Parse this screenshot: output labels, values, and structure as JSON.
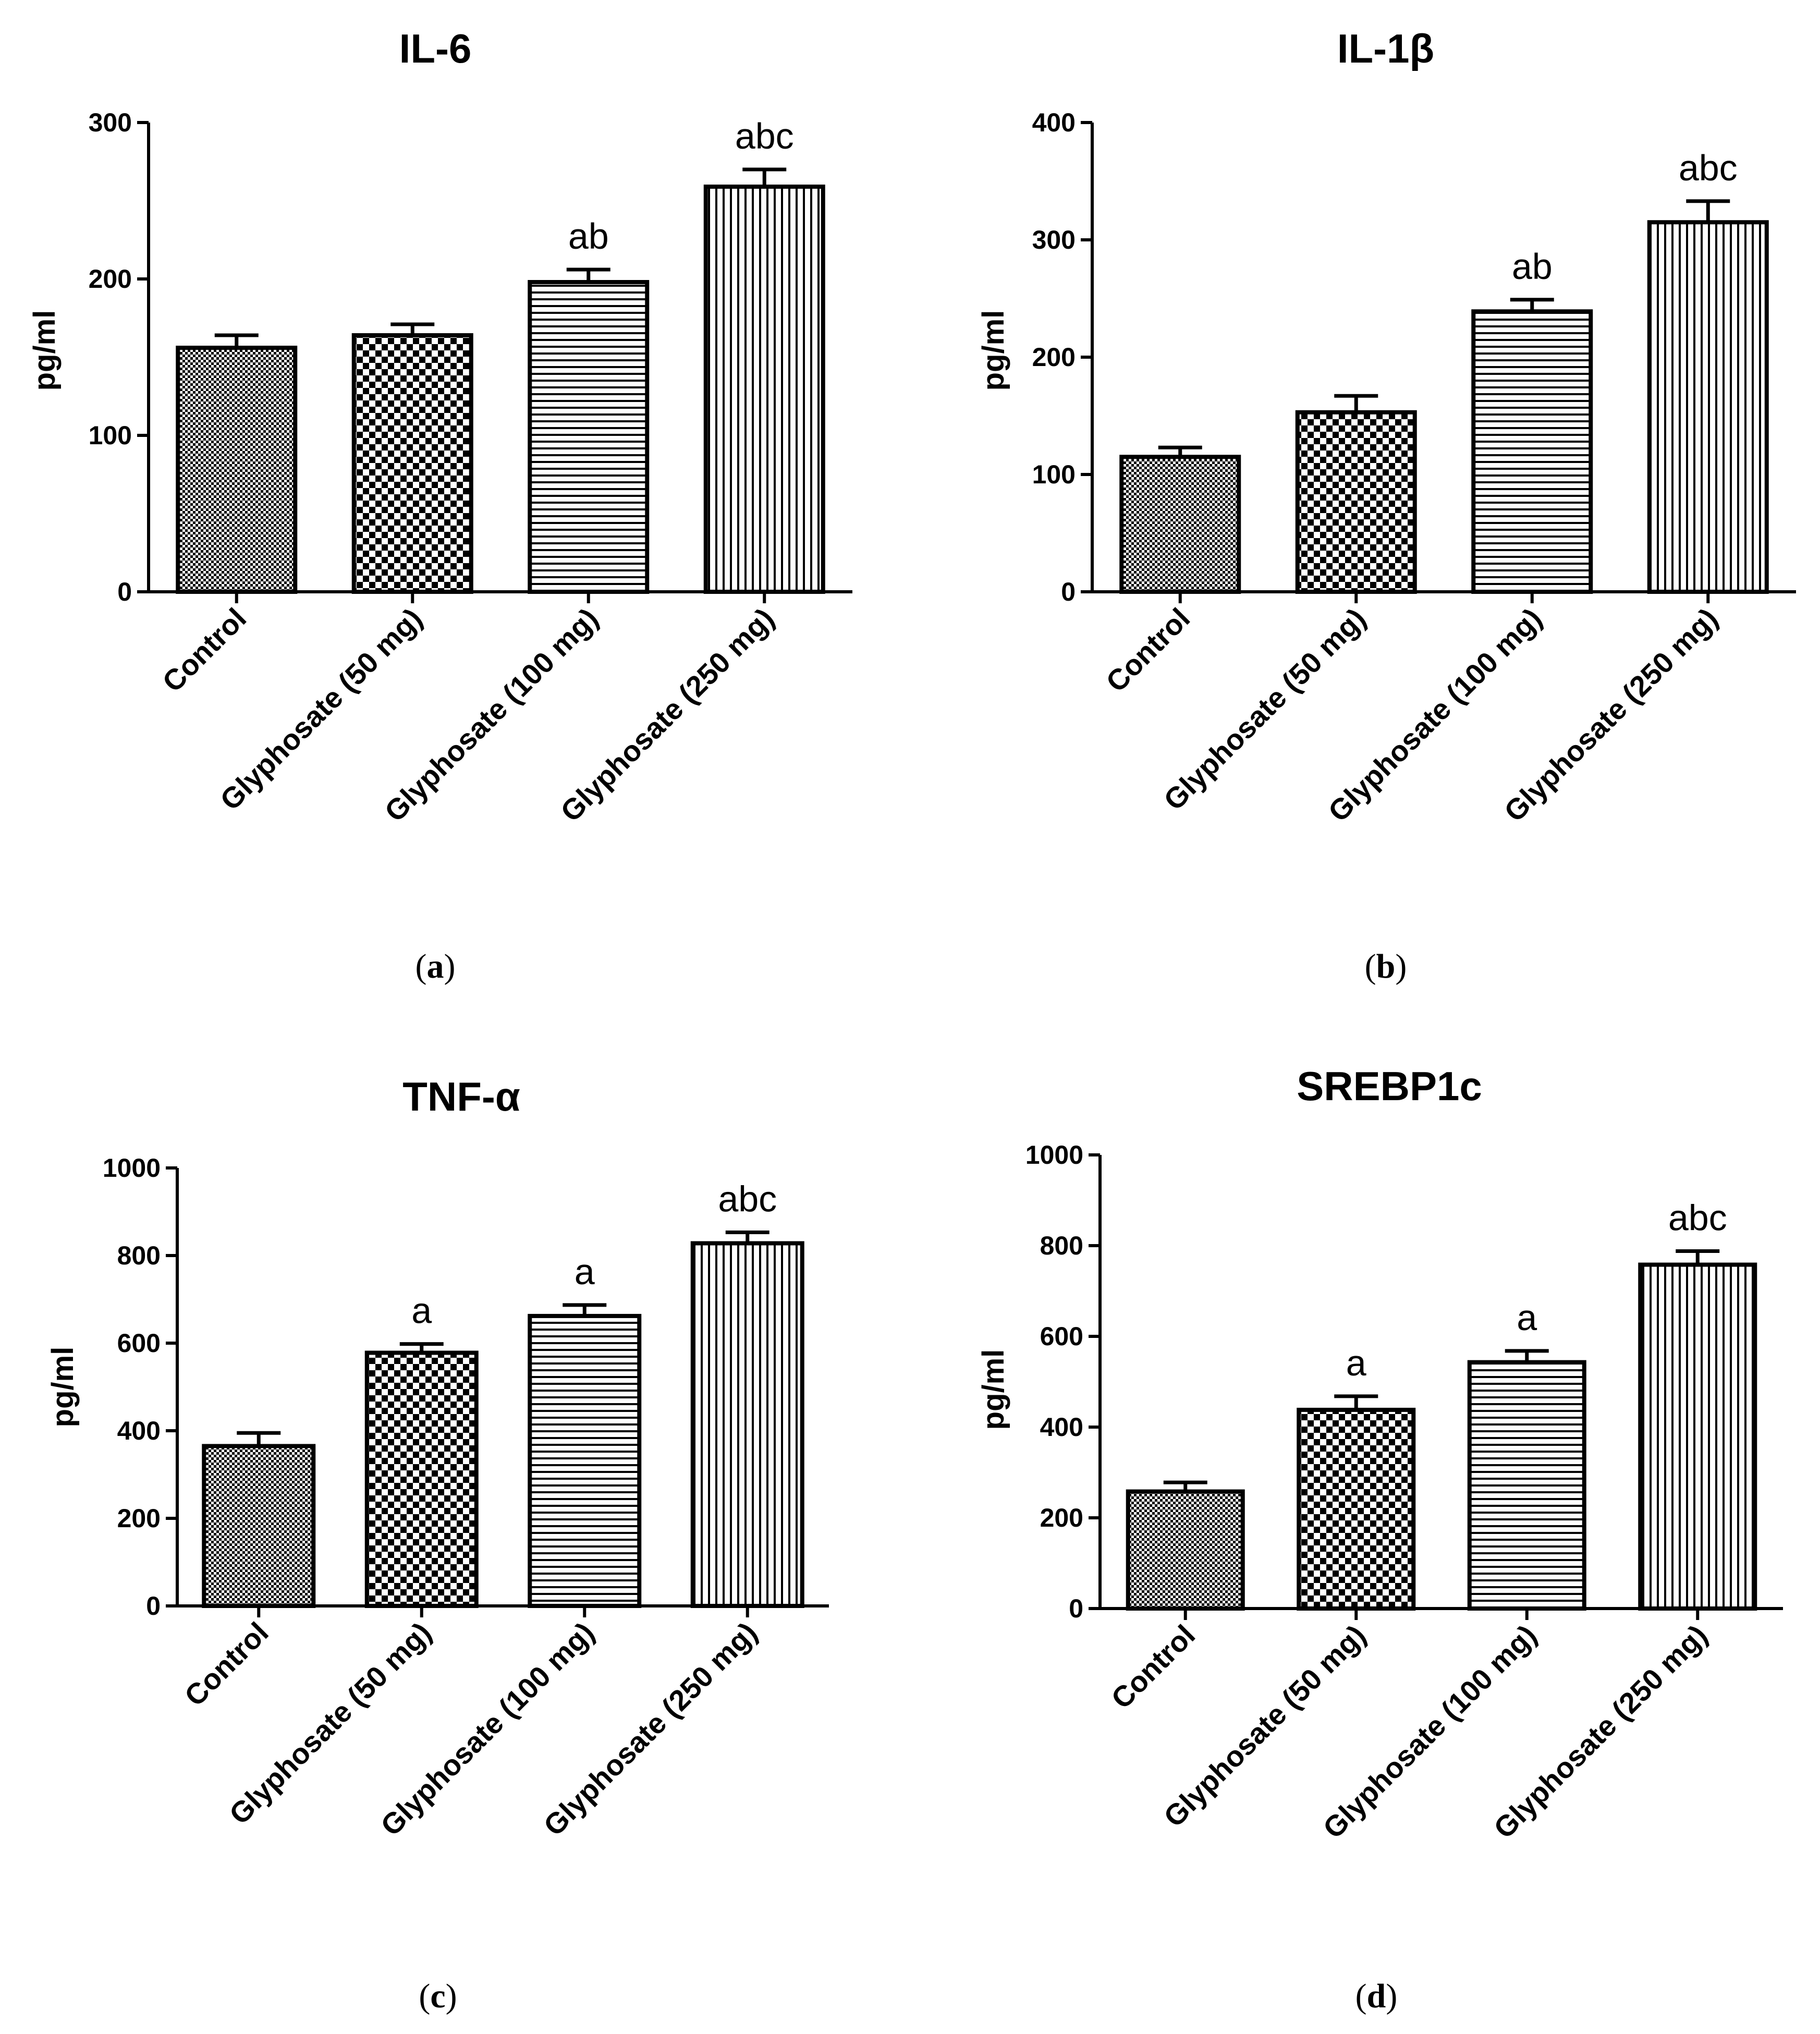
{
  "chart_data": [
    {
      "panel": "a",
      "type": "bar",
      "title": "IL-6",
      "ylabel": "pg/ml",
      "xlabel": "",
      "categories": [
        "Control",
        "Glyphosate (50 mg)",
        "Glyphosate (100 mg)",
        "Glyphosate (250 mg)"
      ],
      "values": [
        156,
        164,
        198,
        259
      ],
      "errors": [
        8,
        7,
        8,
        11
      ],
      "significance": [
        "",
        "",
        "ab",
        "abc"
      ],
      "ylim": [
        0,
        300
      ],
      "yticks": [
        0,
        100,
        200,
        300
      ],
      "caption_label": "a",
      "grid": false
    },
    {
      "panel": "b",
      "type": "bar",
      "title": "IL-1β",
      "ylabel": "pg/ml",
      "xlabel": "",
      "categories": [
        "Control",
        "Glyphosate (50 mg)",
        "Glyphosate (100 mg)",
        "Glyphosate (250 mg)"
      ],
      "values": [
        115,
        153,
        239,
        315
      ],
      "errors": [
        8,
        14,
        10,
        18
      ],
      "significance": [
        "",
        "",
        "ab",
        "abc"
      ],
      "ylim": [
        0,
        400
      ],
      "yticks": [
        0,
        100,
        200,
        300,
        400
      ],
      "caption_label": "b",
      "grid": false
    },
    {
      "panel": "c",
      "type": "bar",
      "title": "TNF-α",
      "ylabel": "pg/ml",
      "xlabel": "",
      "categories": [
        "Control",
        "Glyphosate (50 mg)",
        "Glyphosate (100 mg)",
        "Glyphosate (250 mg)"
      ],
      "values": [
        365,
        578,
        662,
        828
      ],
      "errors": [
        30,
        20,
        25,
        25
      ],
      "significance": [
        "",
        "a",
        "a",
        "abc"
      ],
      "ylim": [
        0,
        1000
      ],
      "yticks": [
        0,
        200,
        400,
        600,
        800,
        1000
      ],
      "caption_label": "c",
      "grid": false
    },
    {
      "panel": "d",
      "type": "bar",
      "title": "SREBP1c",
      "ylabel": "pg/ml",
      "xlabel": "",
      "categories": [
        "Control",
        "Glyphosate (50 mg)",
        "Glyphosate (100 mg)",
        "Glyphosate (250 mg)"
      ],
      "values": [
        258,
        438,
        543,
        758
      ],
      "errors": [
        20,
        30,
        25,
        30
      ],
      "significance": [
        "",
        "a",
        "a",
        "abc"
      ],
      "ylim": [
        0,
        1000
      ],
      "yticks": [
        0,
        200,
        400,
        600,
        800,
        1000
      ],
      "caption_label": "d",
      "grid": false
    }
  ],
  "colors": {
    "background": "#ffffff",
    "ink": "#000000"
  }
}
